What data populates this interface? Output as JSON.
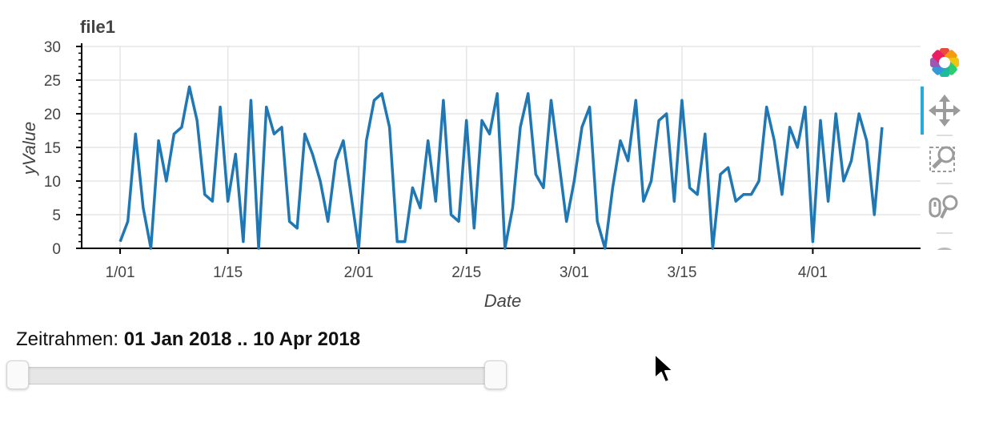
{
  "chart_data": {
    "type": "line",
    "title": "file1",
    "xlabel": "Date",
    "ylabel": "yValue",
    "ylim": [
      0,
      30
    ],
    "xlim": [
      "2017-12-27",
      "2018-04-15"
    ],
    "y_ticks": [
      0,
      5,
      10,
      15,
      20,
      25,
      30
    ],
    "x_ticks": [
      {
        "date": "2018-01-01",
        "label": "1/01"
      },
      {
        "date": "2018-01-15",
        "label": "1/15"
      },
      {
        "date": "2018-02-01",
        "label": "2/01"
      },
      {
        "date": "2018-02-15",
        "label": "2/15"
      },
      {
        "date": "2018-03-01",
        "label": "3/01"
      },
      {
        "date": "2018-03-15",
        "label": "3/15"
      },
      {
        "date": "2018-04-01",
        "label": "4/01"
      }
    ],
    "grid": true,
    "line_color": "#1f77b4",
    "x": [
      "2018-01-01",
      "2018-01-02",
      "2018-01-03",
      "2018-01-04",
      "2018-01-05",
      "2018-01-06",
      "2018-01-07",
      "2018-01-08",
      "2018-01-09",
      "2018-01-10",
      "2018-01-11",
      "2018-01-12",
      "2018-01-13",
      "2018-01-14",
      "2018-01-15",
      "2018-01-16",
      "2018-01-17",
      "2018-01-18",
      "2018-01-19",
      "2018-01-20",
      "2018-01-21",
      "2018-01-22",
      "2018-01-23",
      "2018-01-24",
      "2018-01-25",
      "2018-01-26",
      "2018-01-27",
      "2018-01-28",
      "2018-01-29",
      "2018-01-30",
      "2018-01-31",
      "2018-02-01",
      "2018-02-02",
      "2018-02-03",
      "2018-02-04",
      "2018-02-05",
      "2018-02-06",
      "2018-02-07",
      "2018-02-08",
      "2018-02-09",
      "2018-02-10",
      "2018-02-11",
      "2018-02-12",
      "2018-02-13",
      "2018-02-14",
      "2018-02-15",
      "2018-02-16",
      "2018-02-17",
      "2018-02-18",
      "2018-02-19",
      "2018-02-20",
      "2018-02-21",
      "2018-02-22",
      "2018-02-23",
      "2018-02-24",
      "2018-02-25",
      "2018-02-26",
      "2018-02-27",
      "2018-02-28",
      "2018-03-01",
      "2018-03-02",
      "2018-03-03",
      "2018-03-04",
      "2018-03-05",
      "2018-03-06",
      "2018-03-07",
      "2018-03-08",
      "2018-03-09",
      "2018-03-10",
      "2018-03-11",
      "2018-03-12",
      "2018-03-13",
      "2018-03-14",
      "2018-03-15",
      "2018-03-16",
      "2018-03-17",
      "2018-03-18",
      "2018-03-19",
      "2018-03-20",
      "2018-03-21",
      "2018-03-22",
      "2018-03-23",
      "2018-03-24",
      "2018-03-25",
      "2018-03-26",
      "2018-03-27",
      "2018-03-28",
      "2018-03-29",
      "2018-03-30",
      "2018-03-31",
      "2018-04-01",
      "2018-04-02",
      "2018-04-03",
      "2018-04-04",
      "2018-04-05",
      "2018-04-06",
      "2018-04-07",
      "2018-04-08",
      "2018-04-09",
      "2018-04-10"
    ],
    "series": [
      {
        "values": [
          1,
          4,
          17,
          6,
          0,
          16,
          10,
          17,
          18,
          24,
          19,
          8,
          7,
          21,
          7,
          14,
          1,
          22,
          0,
          21,
          17,
          18,
          4,
          3,
          17,
          14,
          10,
          4,
          13,
          16,
          8,
          0,
          16,
          22,
          23,
          18,
          1,
          1,
          9,
          6,
          16,
          7,
          22,
          5,
          4,
          19,
          3,
          19,
          17,
          23,
          0,
          6,
          18,
          23,
          11,
          9,
          22,
          13,
          4,
          10,
          18,
          21,
          4,
          0,
          9,
          16,
          13,
          22,
          7,
          10,
          19,
          20,
          7,
          22,
          9,
          8,
          17,
          0,
          11,
          12,
          7,
          8,
          8,
          10,
          21,
          16,
          8,
          18,
          15,
          21,
          1,
          19,
          7,
          20,
          10,
          13,
          20,
          16,
          5,
          18
        ]
      }
    ]
  },
  "slider": {
    "label": "Zeitrahmen:",
    "value": "01 Jan 2018 .. 10 Apr 2018",
    "range_start": "2018-01-01",
    "range_end": "2018-04-10"
  },
  "toolbar": {
    "tools": [
      "bokeh-logo-icon",
      "pan-icon",
      "box-zoom-icon",
      "wheel-zoom-icon",
      "save-icon"
    ],
    "active_tool": "pan-icon",
    "accent_color": "#26aae1"
  }
}
